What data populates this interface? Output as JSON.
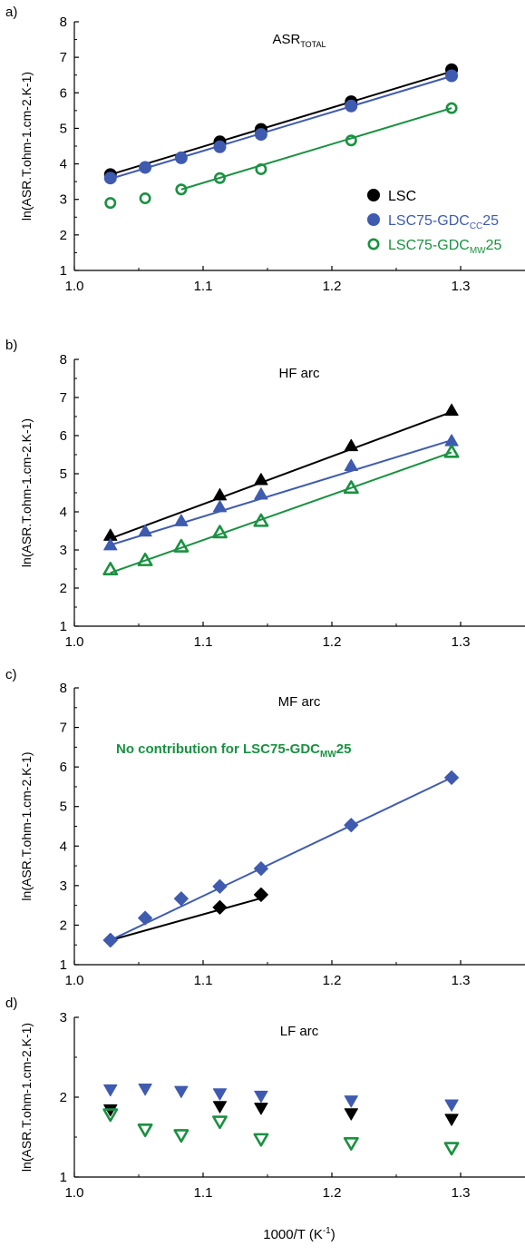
{
  "colors": {
    "lsc": "#000000",
    "cc": "#3F5BB0",
    "mw": "#1A9141",
    "axis": "#000000"
  },
  "figure": {
    "xlabel_main": "1000/T (K",
    "xlabel_sup": "-1",
    "xlabel_tail": ")"
  },
  "chart_data": [
    {
      "type": "scatter",
      "panel_label": "a)",
      "title_main": "ASR",
      "title_sub": "TOTAL",
      "ylabel": "ln(ASR.T.ohm-1.cm-2.K-1)",
      "xlim": [
        1.0,
        1.35
      ],
      "ylim": [
        1,
        8
      ],
      "xticks": [
        "1.0",
        "1.1",
        "1.2",
        "1.3"
      ],
      "yticks": [
        "1",
        "2",
        "3",
        "4",
        "5",
        "6",
        "7",
        "8"
      ],
      "grid": false,
      "legend": {
        "placement": "lower-right",
        "entries": [
          {
            "series": "lsc",
            "main": "LSC",
            "sub": "",
            "tail": ""
          },
          {
            "series": "cc",
            "main": "LSC75-GDC",
            "sub": "CC",
            "tail": "25"
          },
          {
            "series": "mw",
            "main": "LSC75-GDC",
            "sub": "MW",
            "tail": "25"
          }
        ]
      },
      "series": [
        {
          "key": "lsc",
          "marker": "circle",
          "filled": true,
          "x": [
            1.028,
            1.113,
            1.145,
            1.215,
            1.293
          ],
          "y": [
            3.7,
            4.62,
            4.97,
            5.75,
            6.65
          ],
          "fit": [
            [
              1.028,
              3.7
            ],
            [
              1.293,
              6.6
            ]
          ]
        },
        {
          "key": "cc",
          "marker": "circle",
          "filled": true,
          "x": [
            1.028,
            1.055,
            1.083,
            1.113,
            1.145,
            1.215,
            1.293
          ],
          "y": [
            3.6,
            3.9,
            4.17,
            4.48,
            4.83,
            5.63,
            6.48
          ],
          "fit": [
            [
              1.028,
              3.58
            ],
            [
              1.293,
              6.47
            ]
          ]
        },
        {
          "key": "mw",
          "marker": "circle",
          "filled": false,
          "x": [
            1.028,
            1.055,
            1.083,
            1.113,
            1.145,
            1.215,
            1.293
          ],
          "y": [
            2.9,
            3.03,
            3.28,
            3.6,
            3.85,
            4.66,
            5.57
          ],
          "fit": [
            [
              1.083,
              3.28
            ],
            [
              1.293,
              5.57
            ]
          ]
        }
      ]
    },
    {
      "type": "scatter",
      "panel_label": "b)",
      "title_main": "HF arc",
      "title_sub": "",
      "ylabel": "ln(ASR.T.ohm-1.cm-2.K-1)",
      "xlim": [
        1.0,
        1.35
      ],
      "ylim": [
        1,
        8
      ],
      "xticks": [
        "1.0",
        "1.1",
        "1.2",
        "1.3"
      ],
      "yticks": [
        "1",
        "2",
        "3",
        "4",
        "5",
        "6",
        "7",
        "8"
      ],
      "grid": false,
      "series": [
        {
          "key": "lsc",
          "marker": "triangle-up",
          "filled": true,
          "x": [
            1.028,
            1.113,
            1.145,
            1.215,
            1.293
          ],
          "y": [
            3.37,
            4.43,
            4.83,
            5.72,
            6.65
          ],
          "fit": [
            [
              1.028,
              3.3
            ],
            [
              1.293,
              6.62
            ]
          ]
        },
        {
          "key": "cc",
          "marker": "triangle-up",
          "filled": true,
          "x": [
            1.028,
            1.055,
            1.083,
            1.113,
            1.145,
            1.215,
            1.293
          ],
          "y": [
            3.12,
            3.48,
            3.75,
            4.12,
            4.45,
            5.2,
            5.85
          ],
          "fit": [
            [
              1.028,
              3.13
            ],
            [
              1.293,
              5.88
            ]
          ]
        },
        {
          "key": "mw",
          "marker": "triangle-up",
          "filled": false,
          "x": [
            1.028,
            1.055,
            1.083,
            1.113,
            1.145,
            1.215,
            1.293
          ],
          "y": [
            2.48,
            2.72,
            3.08,
            3.45,
            3.75,
            4.62,
            5.56
          ],
          "fit": [
            [
              1.028,
              2.4
            ],
            [
              1.293,
              5.56
            ]
          ]
        }
      ]
    },
    {
      "type": "scatter",
      "panel_label": "c)",
      "title_main": "MF arc",
      "title_sub": "",
      "ylabel": "ln(ASR.T.ohm-1.cm-2.K-1)",
      "xlim": [
        1.0,
        1.35
      ],
      "ylim": [
        1,
        8
      ],
      "xticks": [
        "1.0",
        "1.1",
        "1.2",
        "1.3"
      ],
      "yticks": [
        "1",
        "2",
        "3",
        "4",
        "5",
        "6",
        "7",
        "8"
      ],
      "grid": false,
      "annotation": {
        "main": "No contribution for LSC75-GDC",
        "sub": "MW",
        "tail": "25"
      },
      "series": [
        {
          "key": "lsc",
          "marker": "diamond",
          "filled": true,
          "x": [
            1.028,
            1.113,
            1.145
          ],
          "y": [
            1.62,
            2.45,
            2.77
          ],
          "fit": [
            [
              1.028,
              1.62
            ],
            [
              1.145,
              2.68
            ]
          ]
        },
        {
          "key": "cc",
          "marker": "diamond",
          "filled": true,
          "x": [
            1.028,
            1.055,
            1.083,
            1.113,
            1.145,
            1.215,
            1.293
          ],
          "y": [
            1.62,
            2.18,
            2.67,
            2.98,
            3.43,
            4.53,
            5.73
          ],
          "fit": [
            [
              1.028,
              1.62
            ],
            [
              1.293,
              5.73
            ]
          ]
        }
      ]
    },
    {
      "type": "scatter",
      "panel_label": "d)",
      "title_main": "LF arc",
      "title_sub": "",
      "ylabel": "ln(ASR.T.ohm-1.cm-2.K-1)",
      "xlim": [
        1.0,
        1.35
      ],
      "ylim": [
        1,
        3
      ],
      "xticks": [
        "1.0",
        "1.1",
        "1.2",
        "1.3"
      ],
      "yticks": [
        "1",
        "2",
        "3"
      ],
      "grid": false,
      "series": [
        {
          "key": "cc",
          "marker": "triangle-down",
          "filled": true,
          "x": [
            1.028,
            1.055,
            1.083,
            1.113,
            1.145,
            1.215,
            1.293
          ],
          "y": [
            2.1,
            2.11,
            2.08,
            2.05,
            2.02,
            1.96,
            1.91
          ]
        },
        {
          "key": "lsc",
          "marker": "triangle-down",
          "filled": true,
          "x": [
            1.028,
            1.113,
            1.145,
            1.215,
            1.293
          ],
          "y": [
            1.85,
            1.89,
            1.87,
            1.8,
            1.73
          ]
        },
        {
          "key": "mw",
          "marker": "triangle-down",
          "filled": false,
          "x": [
            1.028,
            1.055,
            1.083,
            1.113,
            1.145,
            1.215,
            1.293
          ],
          "y": [
            1.79,
            1.6,
            1.53,
            1.7,
            1.48,
            1.43,
            1.37
          ]
        }
      ]
    }
  ]
}
